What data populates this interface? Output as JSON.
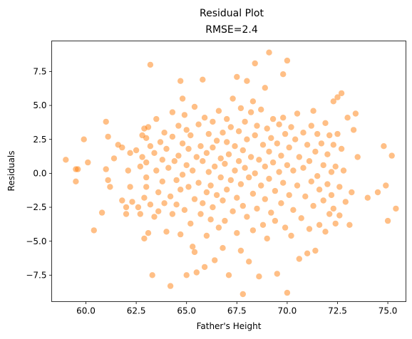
{
  "chart_data": {
    "type": "scatter",
    "title": "Residual Plot",
    "subtitle": "RMSE=2.4",
    "xlabel": "Father's Height",
    "ylabel": "Residuals",
    "xlim": [
      58.3,
      75.9
    ],
    "ylim": [
      -9.45,
      9.75
    ],
    "x_ticks": [
      60.0,
      62.5,
      65.0,
      67.5,
      70.0,
      72.5,
      75.0
    ],
    "x_tick_labels": [
      "60.0",
      "62.5",
      "65.0",
      "67.5",
      "70.0",
      "72.5",
      "75.0"
    ],
    "y_ticks": [
      -7.5,
      -5.0,
      -2.5,
      0.0,
      2.5,
      5.0,
      7.5
    ],
    "y_tick_labels": [
      "−7.5",
      "−5.0",
      "−2.5",
      "0.0",
      "2.5",
      "5.0",
      "7.5"
    ],
    "grid": false,
    "marker_color": "#ff7f0e",
    "marker_alpha": 0.5,
    "points": [
      [
        59.0,
        1.0
      ],
      [
        59.5,
        0.3
      ],
      [
        59.6,
        0.3
      ],
      [
        59.5,
        -0.6
      ],
      [
        59.9,
        2.5
      ],
      [
        60.1,
        0.8
      ],
      [
        60.4,
        -4.2
      ],
      [
        60.8,
        -2.9
      ],
      [
        61.0,
        3.8
      ],
      [
        61.0,
        0.3
      ],
      [
        61.1,
        2.7
      ],
      [
        61.1,
        -0.5
      ],
      [
        61.2,
        -1.0
      ],
      [
        61.4,
        1.1
      ],
      [
        61.6,
        2.1
      ],
      [
        61.8,
        1.9
      ],
      [
        61.8,
        -2.0
      ],
      [
        62.0,
        -2.5
      ],
      [
        62.0,
        -3.0
      ],
      [
        62.1,
        0.2
      ],
      [
        62.2,
        1.5
      ],
      [
        62.2,
        -1.0
      ],
      [
        62.3,
        -2.1
      ],
      [
        62.5,
        1.7
      ],
      [
        62.6,
        -2.5
      ],
      [
        62.7,
        0.5
      ],
      [
        62.7,
        -3.0
      ],
      [
        62.8,
        2.8
      ],
      [
        62.8,
        1.2
      ],
      [
        62.9,
        3.3
      ],
      [
        62.9,
        -1.8
      ],
      [
        62.9,
        -4.8
      ],
      [
        63.0,
        2.6
      ],
      [
        63.0,
        0.8
      ],
      [
        63.0,
        -0.3
      ],
      [
        63.0,
        -1.0
      ],
      [
        63.1,
        3.4
      ],
      [
        63.1,
        -4.4
      ],
      [
        63.2,
        8.0
      ],
      [
        63.2,
        2.0
      ],
      [
        63.2,
        -2.3
      ],
      [
        63.3,
        -7.5
      ],
      [
        63.4,
        1.5
      ],
      [
        63.4,
        -3.2
      ],
      [
        63.5,
        4.0
      ],
      [
        63.5,
        0.2
      ],
      [
        63.6,
        -1.4
      ],
      [
        63.6,
        -2.8
      ],
      [
        63.7,
        2.3
      ],
      [
        63.8,
        1.0
      ],
      [
        63.8,
        -0.6
      ],
      [
        63.9,
        3.0
      ],
      [
        63.9,
        -2.2
      ],
      [
        64.0,
        1.8
      ],
      [
        64.0,
        -4.3
      ],
      [
        64.1,
        0.4
      ],
      [
        64.2,
        -8.3
      ],
      [
        64.2,
        -1.7
      ],
      [
        64.3,
        4.5
      ],
      [
        64.3,
        2.7
      ],
      [
        64.3,
        -3.0
      ],
      [
        64.4,
        0.9
      ],
      [
        64.5,
        -0.5
      ],
      [
        64.5,
        -2.3
      ],
      [
        64.6,
        3.5
      ],
      [
        64.6,
        1.3
      ],
      [
        64.7,
        -1.2
      ],
      [
        64.7,
        6.8
      ],
      [
        64.7,
        -4.5
      ],
      [
        64.8,
        5.5
      ],
      [
        64.8,
        2.2
      ],
      [
        64.8,
        -0.1
      ],
      [
        64.9,
        4.3
      ],
      [
        64.9,
        -2.7
      ],
      [
        65.0,
        3.2
      ],
      [
        65.0,
        0.6
      ],
      [
        65.0,
        -7.5
      ],
      [
        65.1,
        1.8
      ],
      [
        65.1,
        -1.0
      ],
      [
        65.2,
        -3.7
      ],
      [
        65.2,
        2.8
      ],
      [
        65.3,
        -5.4
      ],
      [
        65.3,
        0.2
      ],
      [
        65.4,
        4.9
      ],
      [
        65.4,
        -1.9
      ],
      [
        65.4,
        -5.8
      ],
      [
        65.5,
        1.2
      ],
      [
        65.5,
        -7.3
      ],
      [
        65.6,
        3.6
      ],
      [
        65.6,
        -0.7
      ],
      [
        65.7,
        2.0
      ],
      [
        65.7,
        -3.0
      ],
      [
        65.8,
        6.9
      ],
      [
        65.8,
        0.9
      ],
      [
        65.8,
        -2.2
      ],
      [
        65.9,
        4.1
      ],
      [
        65.9,
        -6.9
      ],
      [
        66.0,
        1.5
      ],
      [
        66.0,
        -1.4
      ],
      [
        66.0,
        -4.6
      ],
      [
        66.1,
        2.9
      ],
      [
        66.1,
        0.1
      ],
      [
        66.2,
        -0.9
      ],
      [
        66.2,
        -3.4
      ],
      [
        66.3,
        3.8
      ],
      [
        66.3,
        1.9
      ],
      [
        66.3,
        -2.5
      ],
      [
        66.4,
        -6.4
      ],
      [
        66.4,
        0.5
      ],
      [
        66.5,
        2.4
      ],
      [
        66.5,
        -1.6
      ],
      [
        66.6,
        4.6
      ],
      [
        66.6,
        -4.0
      ],
      [
        66.7,
        1.1
      ],
      [
        66.7,
        -0.3
      ],
      [
        66.8,
        3.0
      ],
      [
        66.8,
        -2.0
      ],
      [
        66.8,
        -5.5
      ],
      [
        66.9,
        0.7
      ],
      [
        66.9,
        -3.5
      ],
      [
        67.0,
        2.3
      ],
      [
        67.0,
        4.0
      ],
      [
        67.0,
        -1.2
      ],
      [
        67.1,
        1.4
      ],
      [
        67.1,
        -7.5
      ],
      [
        67.2,
        -0.5
      ],
      [
        67.2,
        3.4
      ],
      [
        67.3,
        -2.8
      ],
      [
        67.3,
        5.5
      ],
      [
        67.4,
        2.0
      ],
      [
        67.4,
        0.2
      ],
      [
        67.5,
        7.1
      ],
      [
        67.5,
        -1.8
      ],
      [
        67.5,
        -4.4
      ],
      [
        67.6,
        3.1
      ],
      [
        67.6,
        0.9
      ],
      [
        67.7,
        4.8
      ],
      [
        67.7,
        -0.8
      ],
      [
        67.7,
        -5.7
      ],
      [
        67.8,
        -8.9
      ],
      [
        67.8,
        1.7
      ],
      [
        67.8,
        -2.4
      ],
      [
        67.9,
        3.8
      ],
      [
        67.9,
        0.4
      ],
      [
        68.0,
        6.8
      ],
      [
        68.0,
        -3.2
      ],
      [
        68.0,
        2.5
      ],
      [
        68.1,
        -0.3
      ],
      [
        68.1,
        -6.5
      ],
      [
        68.2,
        1.2
      ],
      [
        68.2,
        4.5
      ],
      [
        68.3,
        -1.5
      ],
      [
        68.3,
        5.3
      ],
      [
        68.3,
        -4.2
      ],
      [
        68.4,
        8.1
      ],
      [
        68.4,
        2.8
      ],
      [
        68.4,
        0.0
      ],
      [
        68.5,
        -2.6
      ],
      [
        68.5,
        3.5
      ],
      [
        68.6,
        1.0
      ],
      [
        68.6,
        -7.6
      ],
      [
        68.7,
        4.7
      ],
      [
        68.7,
        -0.9
      ],
      [
        68.8,
        2.1
      ],
      [
        68.8,
        -3.8
      ],
      [
        68.9,
        6.3
      ],
      [
        68.9,
        0.5
      ],
      [
        68.9,
        -1.9
      ],
      [
        69.0,
        3.3
      ],
      [
        69.0,
        -4.8
      ],
      [
        69.1,
        8.9
      ],
      [
        69.1,
        1.6
      ],
      [
        69.1,
        -0.4
      ],
      [
        69.2,
        2.6
      ],
      [
        69.2,
        -2.9
      ],
      [
        69.3,
        4.0
      ],
      [
        69.3,
        0.8
      ],
      [
        69.4,
        -1.3
      ],
      [
        69.4,
        -3.5
      ],
      [
        69.5,
        2.2
      ],
      [
        69.5,
        -7.4
      ],
      [
        69.6,
        3.6
      ],
      [
        69.6,
        0.1
      ],
      [
        69.7,
        1.3
      ],
      [
        69.7,
        -2.2
      ],
      [
        69.8,
        7.3
      ],
      [
        69.8,
        4.1
      ],
      [
        69.8,
        -0.7
      ],
      [
        69.9,
        2.9
      ],
      [
        69.9,
        -4.0
      ],
      [
        70.0,
        8.3
      ],
      [
        70.0,
        0.6
      ],
      [
        70.0,
        -8.8
      ],
      [
        70.1,
        1.9
      ],
      [
        70.1,
        -1.6
      ],
      [
        70.2,
        3.4
      ],
      [
        70.2,
        -4.6
      ],
      [
        70.3,
        0.2
      ],
      [
        70.3,
        -2.7
      ],
      [
        70.4,
        2.5
      ],
      [
        70.5,
        -0.9
      ],
      [
        70.5,
        4.4
      ],
      [
        70.6,
        -6.3
      ],
      [
        70.6,
        1.2
      ],
      [
        70.7,
        -3.3
      ],
      [
        70.8,
        3.0
      ],
      [
        70.8,
        0.4
      ],
      [
        70.9,
        -1.7
      ],
      [
        71.0,
        -5.9
      ],
      [
        71.0,
        2.1
      ],
      [
        71.1,
        -4.1
      ],
      [
        71.1,
        0.9
      ],
      [
        71.2,
        3.5
      ],
      [
        71.2,
        -0.6
      ],
      [
        71.3,
        4.6
      ],
      [
        71.3,
        -2.4
      ],
      [
        71.4,
        -5.7
      ],
      [
        71.4,
        1.6
      ],
      [
        71.5,
        2.9
      ],
      [
        71.5,
        -0.2
      ],
      [
        71.6,
        -1.2
      ],
      [
        71.6,
        -3.8
      ],
      [
        71.7,
        2.2
      ],
      [
        71.8,
        0.6
      ],
      [
        71.8,
        -2.0
      ],
      [
        71.9,
        3.7
      ],
      [
        71.9,
        -4.3
      ],
      [
        72.0,
        1.4
      ],
      [
        72.0,
        -0.8
      ],
      [
        72.1,
        2.8
      ],
      [
        72.1,
        -3.0
      ],
      [
        72.2,
        0.1
      ],
      [
        72.2,
        -1.6
      ],
      [
        72.3,
        5.3
      ],
      [
        72.3,
        2.1
      ],
      [
        72.3,
        -2.6
      ],
      [
        72.4,
        0.5
      ],
      [
        72.4,
        -3.7
      ],
      [
        72.5,
        5.6
      ],
      [
        72.5,
        2.9
      ],
      [
        72.6,
        -1.0
      ],
      [
        72.6,
        -3.1
      ],
      [
        72.7,
        5.9
      ],
      [
        72.7,
        1.8
      ],
      [
        72.8,
        0.2
      ],
      [
        72.9,
        -2.1
      ],
      [
        73.0,
        4.1
      ],
      [
        73.1,
        -3.8
      ],
      [
        73.2,
        -1.4
      ],
      [
        73.3,
        3.2
      ],
      [
        73.4,
        4.4
      ],
      [
        73.5,
        1.2
      ],
      [
        74.0,
        -1.8
      ],
      [
        74.5,
        -1.4
      ],
      [
        74.8,
        2.0
      ],
      [
        74.9,
        -0.9
      ],
      [
        75.0,
        -3.5
      ],
      [
        75.2,
        1.3
      ],
      [
        75.4,
        -2.6
      ]
    ]
  }
}
